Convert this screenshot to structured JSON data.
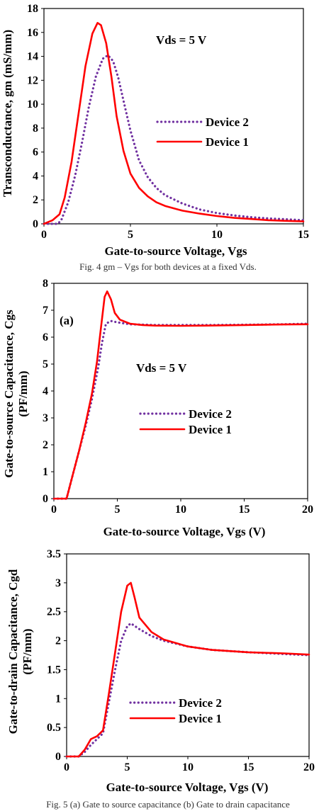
{
  "captions": {
    "fig4": "Fig. 4 gm – Vgs for  both devices at a fixed Vds.",
    "fig5": "Fig. 5 (a) Gate to source capacitance (b) Gate to drain capacitance"
  },
  "chart_data": [
    {
      "type": "line",
      "xlabel": "Gate-to-source Voltage, Vgs",
      "ylabel": "Transconductance, gm (mS/mm)",
      "xlim": [
        0,
        15
      ],
      "ylim": [
        0,
        18
      ],
      "xticks": [
        0,
        5,
        10,
        15
      ],
      "yticks": [
        0,
        2,
        4,
        6,
        8,
        10,
        12,
        14,
        16,
        18
      ],
      "annotation": "Vds = 5 V",
      "legend_position": "center-right",
      "series": [
        {
          "name": "Device 2",
          "color": "#7030A0",
          "style": "dotted",
          "x": [
            0,
            0.8,
            1.0,
            1.4,
            1.8,
            2.2,
            2.6,
            3.0,
            3.4,
            3.7,
            4.0,
            4.3,
            4.6,
            5.0,
            5.5,
            6.0,
            6.5,
            7.0,
            8.0,
            9.0,
            10.0,
            11.0,
            12.0,
            13.0,
            14.0,
            15.0
          ],
          "y": [
            0,
            0,
            0.3,
            1.8,
            4.0,
            6.8,
            9.8,
            12.3,
            13.8,
            14.1,
            13.6,
            12.2,
            10.3,
            7.8,
            5.3,
            3.9,
            3.0,
            2.4,
            1.7,
            1.2,
            0.9,
            0.7,
            0.55,
            0.45,
            0.38,
            0.3
          ]
        },
        {
          "name": "Device 1",
          "color": "#FF0000",
          "style": "solid",
          "x": [
            0,
            0.5,
            0.9,
            1.2,
            1.6,
            2.0,
            2.4,
            2.8,
            3.1,
            3.3,
            3.6,
            3.9,
            4.2,
            4.6,
            5.0,
            5.5,
            6.0,
            6.5,
            7.0,
            8.0,
            9.0,
            10.0,
            11.0,
            12.0,
            13.0,
            14.0,
            15.0
          ],
          "y": [
            0,
            0.3,
            0.8,
            2.2,
            5.2,
            9.2,
            13.2,
            15.9,
            16.8,
            16.6,
            15.1,
            12.3,
            9.0,
            6.1,
            4.2,
            3.0,
            2.3,
            1.8,
            1.5,
            1.1,
            0.85,
            0.65,
            0.5,
            0.4,
            0.3,
            0.25,
            0.2
          ]
        }
      ]
    },
    {
      "type": "line",
      "xlabel": "Gate-to-source Voltage, Vgs (V)",
      "ylabel_line1": "Gate-to-source Capacitance, Cgs",
      "ylabel_line2": "(PF/mm)",
      "xlim": [
        0,
        20
      ],
      "ylim": [
        0,
        8
      ],
      "xticks": [
        0,
        5,
        10,
        15,
        20
      ],
      "yticks": [
        0,
        1,
        2,
        3,
        4,
        5,
        6,
        7,
        8
      ],
      "panel_label": "(a)",
      "annotation": "Vds = 5 V",
      "legend_position": "center-right",
      "series": [
        {
          "name": "Device 2",
          "color": "#7030A0",
          "style": "dotted",
          "x": [
            0,
            1.0,
            1.5,
            2.0,
            2.5,
            3.0,
            3.5,
            3.8,
            4.1,
            4.5,
            5.0,
            6.0,
            8.0,
            10.0,
            12.0,
            15.0,
            18.0,
            20.0
          ],
          "y": [
            0,
            0,
            0.9,
            1.8,
            2.7,
            3.7,
            4.9,
            5.8,
            6.5,
            6.6,
            6.55,
            6.48,
            6.45,
            6.45,
            6.45,
            6.46,
            6.48,
            6.5
          ]
        },
        {
          "name": "Device 1",
          "color": "#FF0000",
          "style": "solid",
          "x": [
            0,
            1.0,
            1.5,
            2.0,
            2.5,
            3.0,
            3.4,
            3.7,
            4.0,
            4.2,
            4.5,
            4.8,
            5.2,
            6.0,
            7.0,
            8.0,
            10.0,
            12.0,
            15.0,
            18.0,
            20.0
          ],
          "y": [
            0,
            0,
            0.9,
            1.8,
            2.8,
            3.9,
            5.1,
            6.3,
            7.5,
            7.7,
            7.4,
            6.9,
            6.65,
            6.5,
            6.45,
            6.43,
            6.42,
            6.43,
            6.45,
            6.47,
            6.48
          ]
        }
      ]
    },
    {
      "type": "line",
      "xlabel": "Gate-to-source Voltage, Vgs (V)",
      "ylabel_line1": "Gate-to-drain Capacitance, Cgd",
      "ylabel_line2": "(PF/mm)",
      "xlim": [
        0,
        20
      ],
      "ylim": [
        0,
        3.5
      ],
      "xticks": [
        0,
        5,
        10,
        15,
        20
      ],
      "yticks": [
        0,
        0.5,
        1,
        1.5,
        2,
        2.5,
        3,
        3.5
      ],
      "legend_position": "bottom-center",
      "series": [
        {
          "name": "Device 2",
          "color": "#7030A0",
          "style": "dotted",
          "x": [
            0,
            1.0,
            1.5,
            2.0,
            2.5,
            3.0,
            3.5,
            4.0,
            4.5,
            5.0,
            5.3,
            6.0,
            7.0,
            8.0,
            10.0,
            12.0,
            15.0,
            18.0,
            20.0
          ],
          "y": [
            0,
            0,
            0.08,
            0.2,
            0.3,
            0.4,
            0.95,
            1.5,
            2.0,
            2.25,
            2.3,
            2.2,
            2.08,
            2.0,
            1.9,
            1.84,
            1.8,
            1.77,
            1.75
          ]
        },
        {
          "name": "Device 1",
          "color": "#FF0000",
          "style": "solid",
          "x": [
            0,
            1.0,
            1.5,
            2.0,
            2.5,
            3.0,
            3.5,
            4.0,
            4.5,
            5.0,
            5.3,
            5.6,
            6.0,
            7.0,
            8.0,
            10.0,
            12.0,
            15.0,
            18.0,
            20.0
          ],
          "y": [
            0,
            0,
            0.12,
            0.3,
            0.35,
            0.45,
            1.1,
            1.8,
            2.5,
            2.95,
            3.0,
            2.75,
            2.4,
            2.15,
            2.02,
            1.9,
            1.84,
            1.8,
            1.78,
            1.76
          ]
        }
      ]
    }
  ]
}
